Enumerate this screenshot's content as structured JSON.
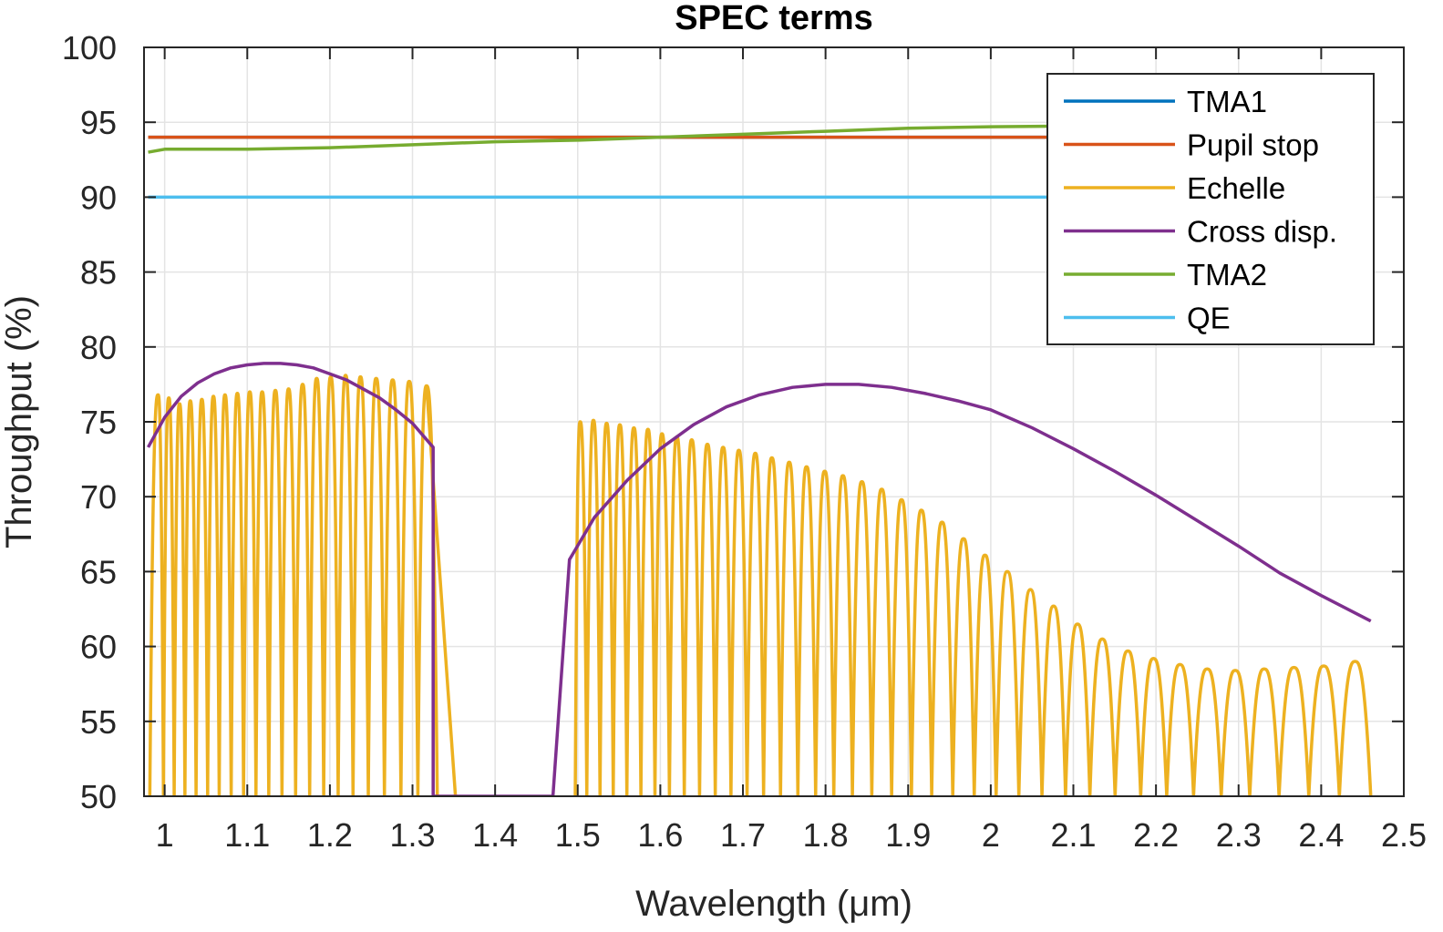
{
  "chart_data": {
    "type": "line",
    "title": "SPEC terms",
    "xlabel": "Wavelength (μm)",
    "ylabel": "Throughput (%)",
    "xlim": [
      0.975,
      2.5
    ],
    "ylim": [
      50,
      100
    ],
    "xticks": [
      1,
      1.1,
      1.2,
      1.3,
      1.4,
      1.5,
      1.6,
      1.7,
      1.8,
      1.9,
      2,
      2.1,
      2.2,
      2.3,
      2.4,
      2.5
    ],
    "xtick_labels": [
      "1",
      "1.1",
      "1.2",
      "1.3",
      "1.4",
      "1.5",
      "1.6",
      "1.7",
      "1.8",
      "1.9",
      "2",
      "2.1",
      "2.2",
      "2.3",
      "2.4",
      "2.5"
    ],
    "yticks": [
      50,
      55,
      60,
      65,
      70,
      75,
      80,
      85,
      90,
      95,
      100
    ],
    "ytick_labels": [
      "50",
      "55",
      "60",
      "65",
      "70",
      "75",
      "80",
      "85",
      "90",
      "95",
      "100"
    ],
    "grid": true,
    "legend_position": "top-right",
    "series": [
      {
        "name": "TMA1",
        "color": "#0072BD",
        "style": "line",
        "x": [
          0.98,
          2.46
        ],
        "y": [
          94,
          94
        ]
      },
      {
        "name": "Pupil stop",
        "color": "#D95319",
        "style": "line",
        "x": [
          0.98,
          2.46
        ],
        "y": [
          94,
          94
        ]
      },
      {
        "name": "Echelle",
        "color": "#EDB120",
        "style": "echelle",
        "segments": [
          {
            "start": 0.982,
            "end": 1.33,
            "peak_x": [
              0.992,
              1.005,
              1.018,
              1.031,
              1.045,
              1.059,
              1.073,
              1.088,
              1.103,
              1.118,
              1.134,
              1.15,
              1.167,
              1.184,
              1.201,
              1.219,
              1.237,
              1.256,
              1.276,
              1.296,
              1.317
            ],
            "peak_y": [
              76.8,
              76.6,
              76.2,
              76.4,
              76.5,
              76.7,
              76.8,
              76.9,
              77.0,
              77.0,
              77.1,
              77.2,
              77.5,
              77.9,
              78.0,
              78.1,
              78.0,
              77.9,
              77.8,
              77.7,
              77.4
            ],
            "tail_to": [
              1.352,
              50
            ]
          },
          {
            "start": 1.497,
            "end": 2.46,
            "peak_x": [
              1.503,
              1.519,
              1.535,
              1.551,
              1.568,
              1.585,
              1.602,
              1.62,
              1.638,
              1.657,
              1.676,
              1.695,
              1.715,
              1.735,
              1.756,
              1.777,
              1.799,
              1.821,
              1.844,
              1.868,
              1.892,
              1.916,
              1.941,
              1.967,
              1.993,
              2.02,
              2.048,
              2.076,
              2.105,
              2.135,
              2.166,
              2.197,
              2.229,
              2.262,
              2.296,
              2.331,
              2.367,
              2.403,
              2.441
            ],
            "peak_y": [
              75.0,
              75.1,
              74.9,
              74.8,
              74.6,
              74.5,
              74.2,
              74.0,
              73.8,
              73.5,
              73.3,
              73.1,
              72.9,
              72.6,
              72.3,
              72.0,
              71.7,
              71.4,
              71.0,
              70.5,
              69.8,
              69.1,
              68.3,
              67.2,
              66.1,
              65.0,
              63.8,
              62.7,
              61.5,
              60.5,
              59.7,
              59.2,
              58.8,
              58.5,
              58.4,
              58.5,
              58.6,
              58.7,
              59.0
            ]
          }
        ]
      },
      {
        "name": "Cross disp.",
        "color": "#7E2F8E",
        "style": "line",
        "x": [
          0.98,
          1.0,
          1.02,
          1.04,
          1.06,
          1.08,
          1.1,
          1.12,
          1.14,
          1.16,
          1.18,
          1.2,
          1.22,
          1.24,
          1.26,
          1.28,
          1.3,
          1.325,
          1.325,
          1.47,
          1.49,
          1.52,
          1.56,
          1.6,
          1.64,
          1.68,
          1.72,
          1.76,
          1.8,
          1.84,
          1.88,
          1.92,
          1.96,
          2.0,
          2.05,
          2.1,
          2.15,
          2.2,
          2.25,
          2.3,
          2.35,
          2.4,
          2.46
        ],
        "y": [
          73.3,
          75.3,
          76.7,
          77.6,
          78.2,
          78.6,
          78.8,
          78.9,
          78.9,
          78.8,
          78.6,
          78.2,
          77.8,
          77.2,
          76.6,
          75.8,
          74.9,
          73.3,
          50.0,
          50.0,
          65.8,
          68.6,
          71.1,
          73.2,
          74.8,
          76.0,
          76.8,
          77.3,
          77.5,
          77.5,
          77.3,
          76.9,
          76.4,
          75.8,
          74.6,
          73.2,
          71.7,
          70.1,
          68.4,
          66.7,
          64.9,
          63.4,
          61.7
        ]
      },
      {
        "name": "TMA2",
        "color": "#77AC30",
        "style": "line",
        "x": [
          0.98,
          1.0,
          1.05,
          1.1,
          1.2,
          1.3,
          1.4,
          1.5,
          1.6,
          1.7,
          1.8,
          1.9,
          2.0,
          2.1,
          2.2,
          2.3,
          2.4,
          2.46
        ],
        "y": [
          93.0,
          93.2,
          93.2,
          93.2,
          93.3,
          93.5,
          93.7,
          93.8,
          94.0,
          94.2,
          94.4,
          94.6,
          94.7,
          94.75,
          94.8,
          94.85,
          94.9,
          94.9
        ]
      },
      {
        "name": "QE",
        "color": "#4DBEEE",
        "style": "line",
        "x": [
          0.98,
          2.46
        ],
        "y": [
          90,
          90
        ]
      }
    ]
  }
}
